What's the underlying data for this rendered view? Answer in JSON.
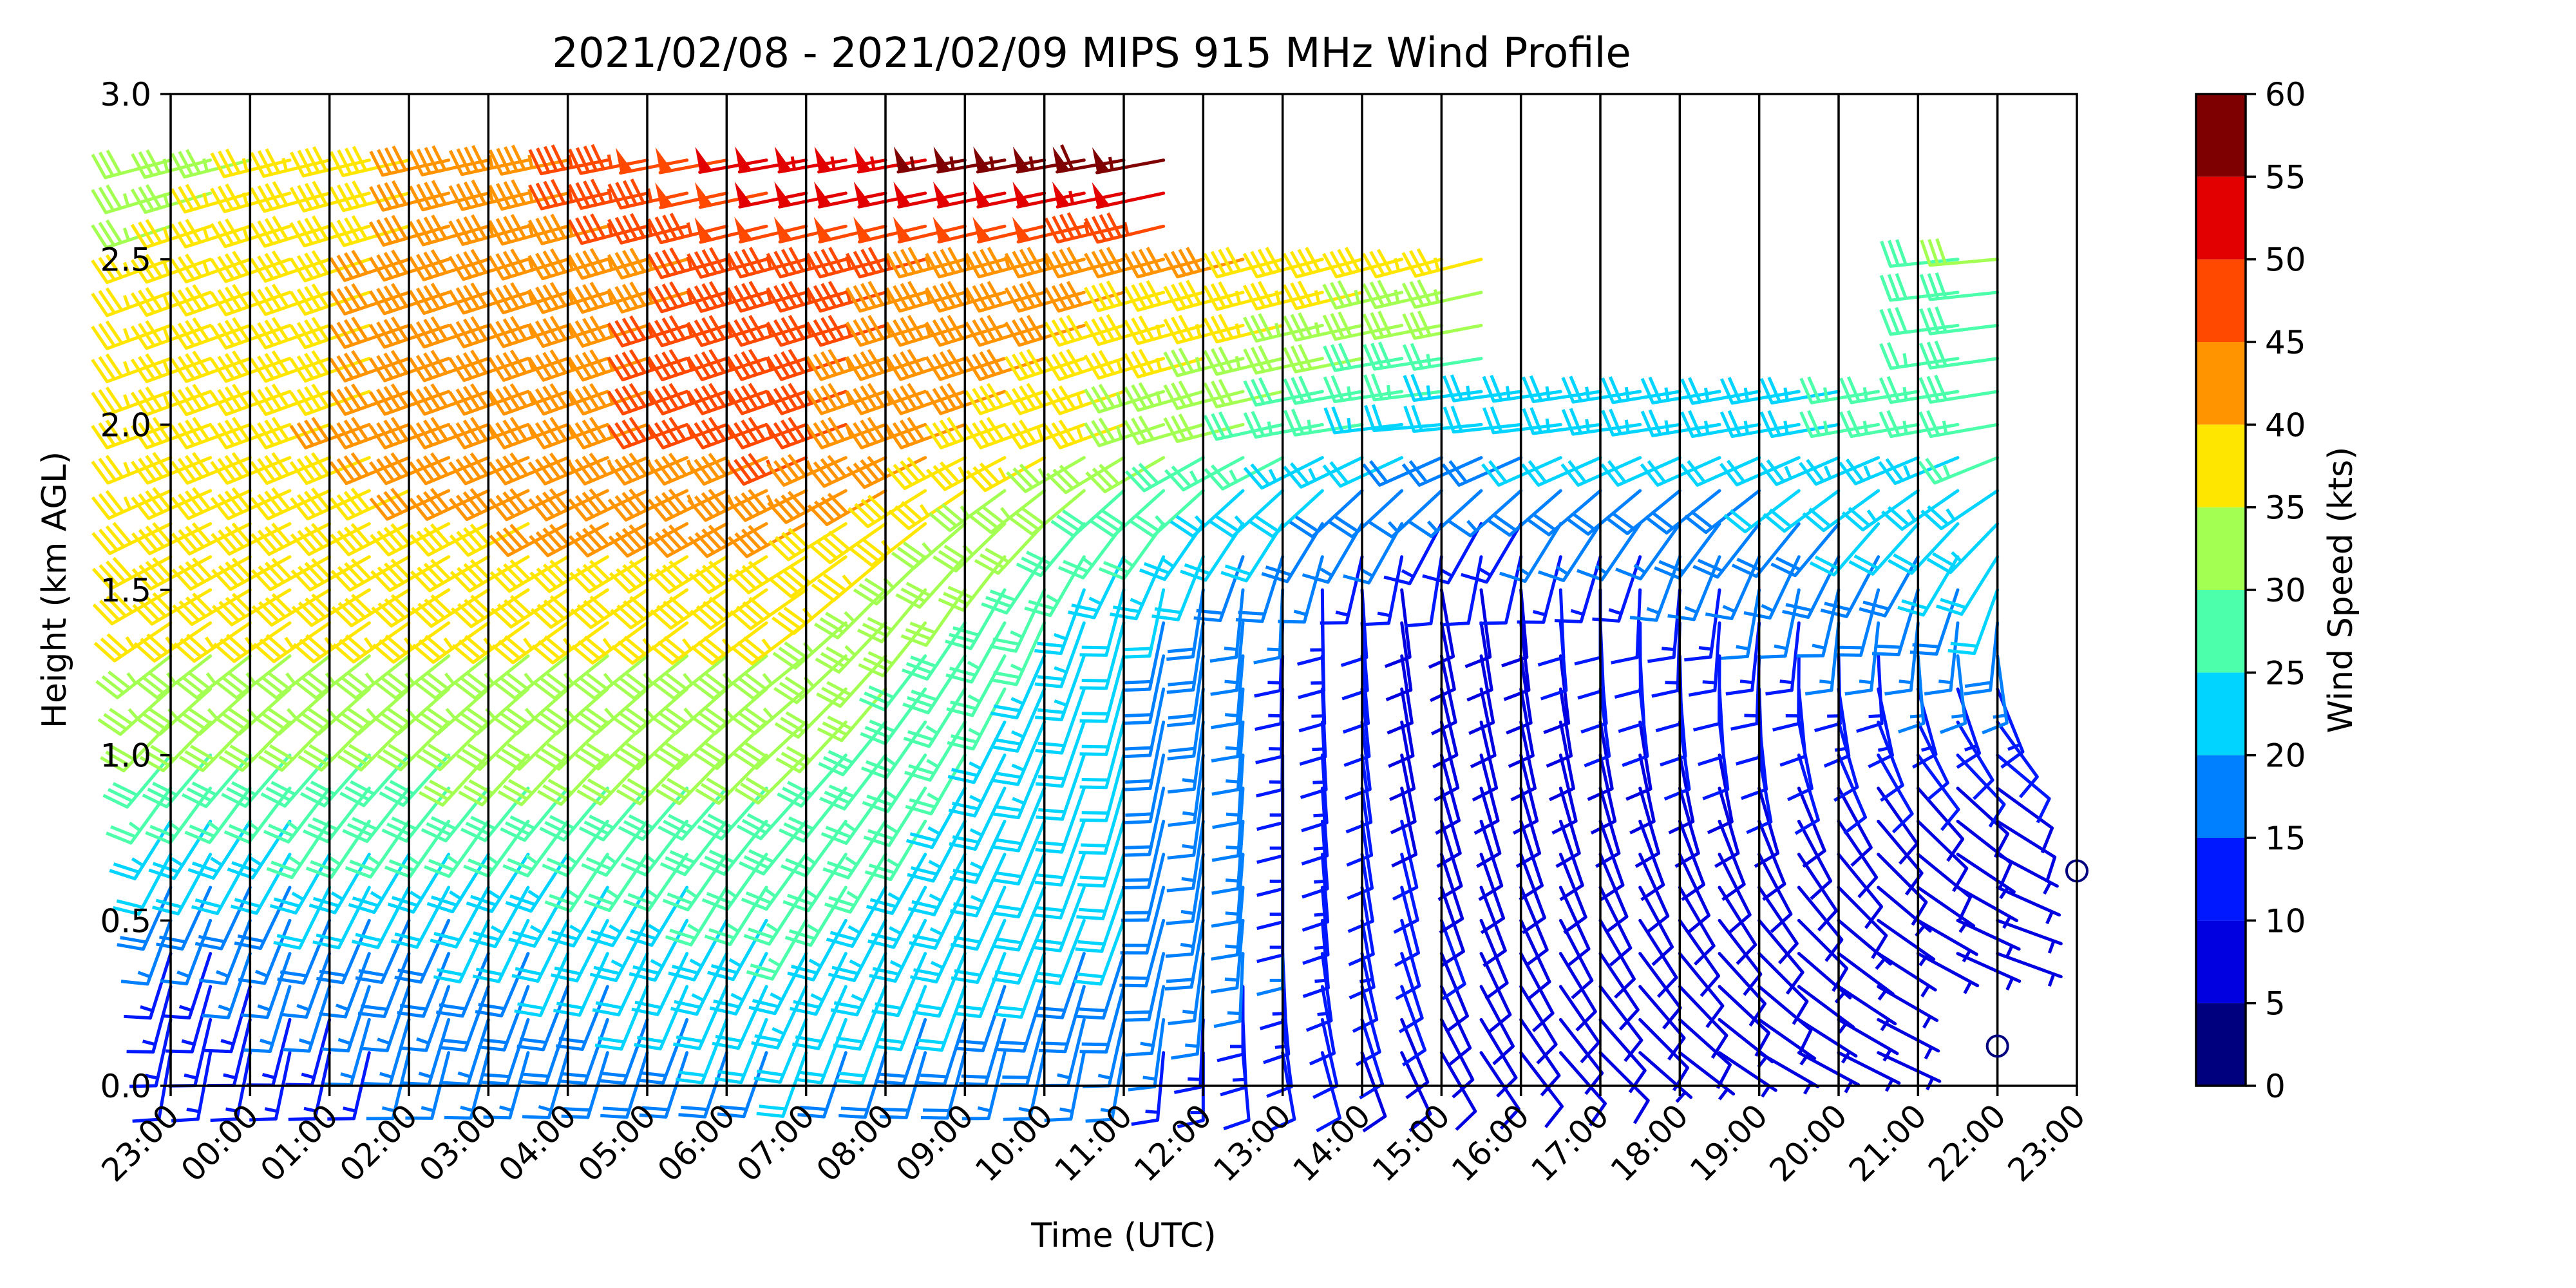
{
  "chart_data": {
    "type": "wind_barb_profile",
    "title": "2021/02/08 - 2021/02/09 MIPS 915 MHz Wind Profile",
    "xlabel": "Time (UTC)",
    "ylabel": "Height (km AGL)",
    "ylim": [
      0,
      3.0
    ],
    "yticks": [
      "0.0",
      "0.5",
      "1.0",
      "1.5",
      "2.0",
      "2.5",
      "3.0"
    ],
    "ytick_values": [
      0,
      0.5,
      1.0,
      1.5,
      2.0,
      2.5,
      3.0
    ],
    "xticks": [
      "23:00",
      "00:00",
      "01:00",
      "02:00",
      "03:00",
      "04:00",
      "05:00",
      "06:00",
      "07:00",
      "08:00",
      "09:00",
      "10:00",
      "11:00",
      "12:00",
      "13:00",
      "14:00",
      "15:00",
      "16:00",
      "17:00",
      "18:00",
      "19:00",
      "20:00",
      "21:00",
      "22:00",
      "23:00"
    ],
    "hours_from_start": [
      0,
      1,
      2,
      3,
      4,
      5,
      6,
      7,
      8,
      9,
      10,
      11,
      12,
      13,
      14,
      15,
      16,
      17,
      18,
      19,
      20,
      21,
      22,
      23,
      24
    ],
    "colorbar": {
      "label": "Wind Speed (kts)",
      "ticks": [
        0,
        5,
        10,
        15,
        20,
        25,
        30,
        35,
        40,
        45,
        50,
        55,
        60
      ],
      "colors": [
        "#00007f",
        "#0000e1",
        "#0018ff",
        "#0080ff",
        "#00d4ff",
        "#4cffaa",
        "#a4ff53",
        "#ffe600",
        "#ff9400",
        "#ff4800",
        "#e30000",
        "#7f0000"
      ]
    },
    "calm_markers": [
      {
        "x_hour": 23.0,
        "height_km": 0.12
      },
      {
        "x_hour": 24.0,
        "height_km": 0.65
      }
    ],
    "profile_summary": [
      {
        "x_hour": 0,
        "levels": [
          {
            "h": 0.1,
            "spd": 12,
            "dir": 190
          },
          {
            "h": 0.5,
            "spd": 15,
            "dir": 200
          },
          {
            "h": 1.0,
            "spd": 30,
            "dir": 220
          },
          {
            "h": 1.5,
            "spd": 38,
            "dir": 240
          },
          {
            "h": 2.0,
            "spd": 37,
            "dir": 250
          },
          {
            "h": 2.5,
            "spd": 36,
            "dir": 250
          },
          {
            "h": 2.8,
            "spd": 32,
            "dir": 255
          }
        ]
      },
      {
        "x_hour": 8,
        "levels": [
          {
            "h": 0.1,
            "spd": 20,
            "dir": 200
          },
          {
            "h": 0.5,
            "spd": 25,
            "dir": 210
          },
          {
            "h": 1.0,
            "spd": 30,
            "dir": 225
          },
          {
            "h": 1.5,
            "spd": 38,
            "dir": 235
          },
          {
            "h": 2.0,
            "spd": 47,
            "dir": 250
          },
          {
            "h": 2.5,
            "spd": 47,
            "dir": 255
          },
          {
            "h": 2.8,
            "spd": 52,
            "dir": 260
          }
        ]
      },
      {
        "x_hour": 12,
        "levels": [
          {
            "h": 0.1,
            "spd": 15,
            "dir": 190
          },
          {
            "h": 0.5,
            "spd": 20,
            "dir": 200
          },
          {
            "h": 1.0,
            "spd": 20,
            "dir": 195
          },
          {
            "h": 1.5,
            "spd": 22,
            "dir": 195
          },
          {
            "h": 2.0,
            "spd": 35,
            "dir": 250
          },
          {
            "h": 2.5,
            "spd": 42,
            "dir": 255
          },
          {
            "h": 2.8,
            "spd": 58,
            "dir": 260
          }
        ]
      },
      {
        "x_hour": 16,
        "levels": [
          {
            "h": 0.1,
            "spd": 8,
            "dir": 150
          },
          {
            "h": 0.5,
            "spd": 10,
            "dir": 160
          },
          {
            "h": 1.0,
            "spd": 8,
            "dir": 165
          },
          {
            "h": 1.5,
            "spd": 8,
            "dir": 170
          },
          {
            "h": 2.0,
            "spd": 22,
            "dir": 265
          },
          {
            "h": 2.5,
            "spd": 37,
            "dir": 255
          }
        ]
      },
      {
        "x_hour": 20,
        "levels": [
          {
            "h": 0.1,
            "spd": 7,
            "dir": 120
          },
          {
            "h": 0.5,
            "spd": 8,
            "dir": 140
          },
          {
            "h": 1.0,
            "spd": 10,
            "dir": 170
          },
          {
            "h": 1.5,
            "spd": 15,
            "dir": 190
          },
          {
            "h": 2.0,
            "spd": 23,
            "dir": 260
          }
        ]
      },
      {
        "x_hour": 23,
        "levels": [
          {
            "h": 0.5,
            "spd": 5,
            "dir": 110
          },
          {
            "h": 1.0,
            "spd": 10,
            "dir": 130
          },
          {
            "h": 1.5,
            "spd": 20,
            "dir": 200
          },
          {
            "h": 2.0,
            "spd": 27,
            "dir": 260
          },
          {
            "h": 2.5,
            "spd": 30,
            "dir": 265
          }
        ]
      }
    ]
  }
}
